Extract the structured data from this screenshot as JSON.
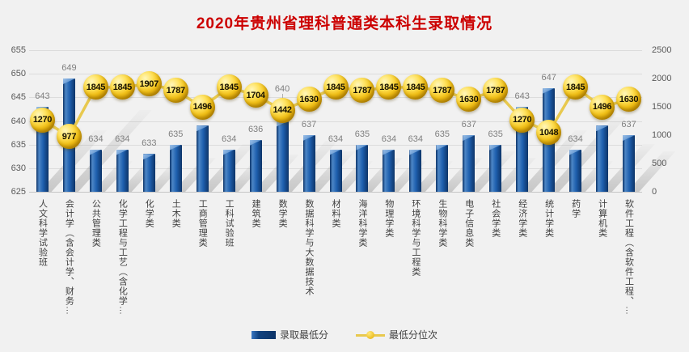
{
  "title": "2020年贵州省理科普通类本科生录取情况",
  "legend": {
    "items": [
      {
        "label": "录取最低分",
        "swatch": "bar-swatch-blue"
      },
      {
        "label": "最低分位次",
        "swatch": "line-swatch-gold"
      }
    ]
  },
  "colors": {
    "title_red": "#cc0000",
    "bar_blue": "#1e5fae",
    "bar_blue_dark": "#0d3468",
    "line_gold": "#e8c94f",
    "sphere_gold": "#f2c118",
    "bar_label_gray": "#7f7f7f",
    "axis_gray": "#595959",
    "background": "#f1f1f1",
    "gridline": "#dcdcdc"
  },
  "chart_data": {
    "type": "bar",
    "subtype": "combo-bar-line",
    "title": "2020年贵州省理科普通类本科生录取情况",
    "categories": [
      "人文科学试验班",
      "会计学（含会计学、财务…",
      "公共管理类",
      "化学工程与工艺（含化学…",
      "化学类",
      "土木类",
      "工商管理类",
      "工科试验班",
      "建筑类",
      "数学类",
      "数据科学与大数据技术",
      "材料类",
      "海洋科学类",
      "物理学类",
      "环境科学与工程类",
      "生物科学类",
      "电子信息类",
      "社会学类",
      "经济学类",
      "统计学类",
      "药学",
      "计算机类",
      "软件工程（含软件工程、…"
    ],
    "series": [
      {
        "name": "录取最低分",
        "type": "bar",
        "axis": "left",
        "values": [
          643,
          649,
          634,
          634,
          633,
          635,
          639,
          634,
          636,
          640,
          637,
          634,
          635,
          634,
          634,
          635,
          637,
          635,
          643,
          647,
          634,
          639,
          637
        ]
      },
      {
        "name": "最低分位次",
        "type": "line",
        "axis": "right",
        "values": [
          1270,
          977,
          1845,
          1845,
          1907,
          1787,
          1496,
          1845,
          1704,
          1442,
          1630,
          1845,
          1787,
          1845,
          1845,
          1787,
          1630,
          1787,
          1270,
          1048,
          1845,
          1496,
          1630
        ]
      }
    ],
    "left_axis": {
      "min": 625,
      "max": 655,
      "ticks": [
        655,
        650,
        645,
        640,
        635,
        630,
        625
      ]
    },
    "right_axis": {
      "min": 0,
      "max": 2500,
      "ticks": [
        2500,
        2000,
        1500,
        1000,
        500,
        0
      ]
    },
    "grid": true,
    "legend_position": "bottom",
    "data_labels": true
  }
}
